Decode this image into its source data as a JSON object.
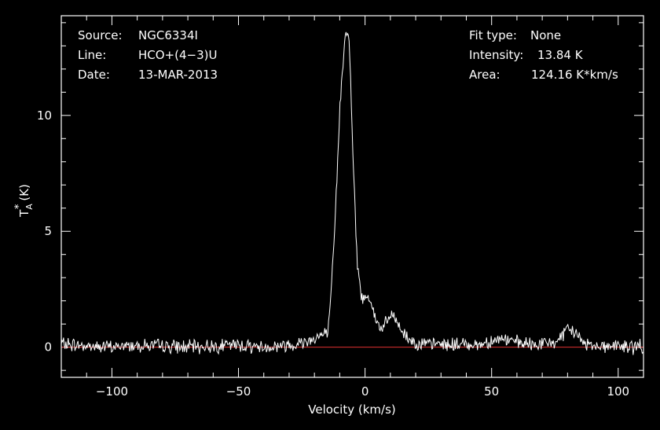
{
  "chart_data": {
    "type": "line",
    "xlabel": "Velocity (km/s)",
    "ylabel": "T",
    "ylabel_sub": "A",
    "ylabel_sup": "*",
    "ylabel_unit": "(K)",
    "xlim": [
      -120,
      110
    ],
    "ylim": [
      -1.3,
      14.3
    ],
    "xticks_major": [
      -100,
      -50,
      0,
      50,
      100
    ],
    "xtick_labels": [
      "−100",
      "−50",
      "0",
      "50",
      "100"
    ],
    "xticks_minor_step": 10,
    "yticks_major": [
      0,
      5,
      10
    ],
    "ytick_labels": [
      "0",
      "5",
      "10"
    ],
    "yticks_minor_step": 1,
    "grid": false,
    "baseline_y": 0,
    "info_left": [
      {
        "key": "Source:",
        "value": "NGC6334I"
      },
      {
        "key": "Line:",
        "value": "HCO+(4−3)U"
      },
      {
        "key": "Date:",
        "value": "13-MAR-2013"
      }
    ],
    "info_right": [
      {
        "key": "Fit type:",
        "value": "None"
      },
      {
        "key": "Intensity:",
        "value": "13.84 K"
      },
      {
        "key": "Area:",
        "value": "124.16 K*km/s"
      }
    ],
    "series": [
      {
        "x": [
          -120,
          -110,
          -100,
          -90,
          -80,
          -70,
          -60,
          -50,
          -40,
          -30,
          -25,
          -20,
          -15,
          -14,
          -12,
          -10,
          -9,
          -8,
          -7,
          -6.5,
          -6,
          -5,
          -4,
          -3,
          -2,
          -1,
          0,
          1,
          2,
          3,
          4,
          5,
          6,
          8,
          10,
          11,
          12,
          14,
          16,
          18,
          20,
          25,
          30,
          35,
          40,
          45,
          50,
          55,
          60,
          65,
          70,
          75,
          78,
          80,
          82,
          84,
          86,
          90,
          95,
          100,
          105,
          110
        ],
        "y": [
          0.15,
          0.05,
          0.0,
          0.1,
          0.05,
          0.0,
          0.05,
          0.1,
          0.0,
          0.1,
          0.2,
          0.4,
          0.6,
          1.2,
          5.0,
          10.2,
          12.0,
          13.2,
          13.84,
          13.5,
          12.5,
          9.0,
          6.0,
          3.5,
          2.6,
          2.0,
          2.2,
          2.3,
          2.1,
          1.7,
          1.2,
          1.0,
          0.8,
          1.0,
          1.3,
          1.4,
          1.2,
          0.8,
          0.5,
          0.3,
          0.2,
          0.1,
          0.15,
          0.1,
          0.15,
          0.1,
          0.3,
          0.35,
          0.2,
          0.1,
          0.15,
          0.2,
          0.5,
          0.7,
          0.75,
          0.5,
          0.2,
          0.1,
          0.05,
          0.05,
          0.0,
          0.05
        ]
      }
    ]
  },
  "colors": {
    "background": "#000000",
    "foreground": "#ffffff",
    "baseline": "#e03030"
  }
}
